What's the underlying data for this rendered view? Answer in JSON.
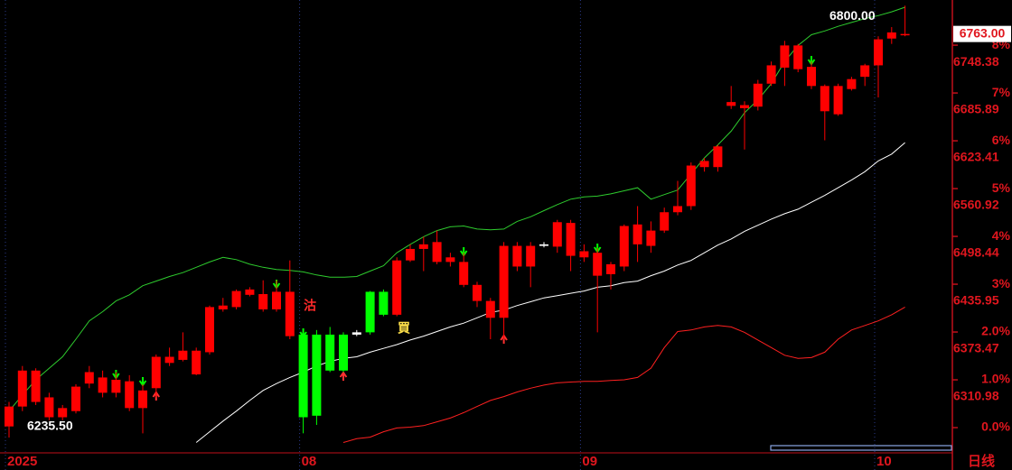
{
  "chart_data": {
    "type": "candlestick",
    "period": "日线",
    "categories": [
      "2025",
      null,
      null,
      null,
      null,
      null,
      null,
      null,
      null,
      null,
      null,
      null,
      null,
      null,
      null,
      null,
      null,
      null,
      null,
      null,
      null,
      null,
      "08",
      null,
      null,
      null,
      null,
      null,
      null,
      null,
      null,
      null,
      null,
      null,
      null,
      null,
      null,
      null,
      null,
      null,
      null,
      null,
      null,
      "09",
      null,
      null,
      null,
      null,
      null,
      null,
      null,
      null,
      null,
      null,
      null,
      null,
      null,
      null,
      null,
      null,
      null,
      null,
      null,
      null,
      null,
      "10",
      null,
      null
    ],
    "open": [
      6250,
      6276,
      6282,
      6262,
      6262,
      6270,
      6306,
      6294,
      6294,
      6274,
      6274,
      6300,
      6333,
      6337,
      6318,
      6347,
      6403,
      6406,
      6422,
      6403,
      6403,
      6426,
      6370,
      6370,
      6370,
      6370,
      6370,
      6373,
      6396,
      6396,
      6467,
      6482,
      6465,
      6465,
      6465,
      6435,
      6414,
      6392,
      6459,
      6459,
      6486,
      6485,
      6516,
      6471,
      6477,
      6449,
      6459,
      6514,
      6486,
      6506,
      6530,
      6538,
      6589,
      6589,
      6669,
      6670,
      6668,
      6698,
      6719,
      6748,
      6720,
      6695,
      6658,
      6691,
      6707,
      6722,
      6757,
      6763
    ],
    "high": [
      6282,
      6329,
      6326,
      6294,
      6278,
      6305,
      6329,
      6323,
      6321,
      6317,
      6305,
      6344,
      6353,
      6373,
      6353,
      6408,
      6418,
      6429,
      6432,
      6441,
      6441,
      6467,
      6376,
      6376,
      6380,
      6373,
      6376,
      6427,
      6429,
      6471,
      6488,
      6498,
      6506,
      6477,
      6477,
      6439,
      6418,
      6491,
      6491,
      6491,
      6491,
      6520,
      6520,
      6488,
      6483,
      6465,
      6514,
      6538,
      6518,
      6536,
      6571,
      6595,
      6601,
      6618,
      6695,
      6675,
      6703,
      6727,
      6754,
      6750,
      6727,
      6697,
      6698,
      6707,
      6724,
      6760,
      6772,
      6800
    ],
    "low": [
      6235.5,
      6270,
      6278,
      6258,
      6258,
      6267,
      6300,
      6288,
      6288,
      6270,
      6241,
      6288,
      6329,
      6335,
      6317,
      6344,
      6400,
      6403,
      6420,
      6400,
      6400,
      6364,
      6241,
      6252,
      6321,
      6321,
      6368,
      6370,
      6394,
      6394,
      6465,
      6453,
      6462,
      6459,
      6432,
      6406,
      6364,
      6364,
      6453,
      6432,
      6484,
      6477,
      6453,
      6465,
      6373,
      6429,
      6453,
      6465,
      6477,
      6503,
      6526,
      6533,
      6583,
      6583,
      6665,
      6612,
      6663,
      6695,
      6695,
      6713,
      6691,
      6624,
      6656,
      6689,
      6695,
      6680,
      6750,
      6760
    ],
    "close": [
      6276,
      6323,
      6323,
      6288,
      6274,
      6302,
      6321,
      6314,
      6311,
      6309,
      6297,
      6341,
      6341,
      6349,
      6349,
      6406,
      6408,
      6427,
      6429,
      6423,
      6426,
      6368,
      6262,
      6264,
      6323,
      6323,
      6373,
      6426,
      6426,
      6467,
      6482,
      6488,
      6491,
      6471,
      6435,
      6414,
      6392,
      6486,
      6486,
      6486,
      6488,
      6517,
      6473,
      6479,
      6447,
      6462,
      6512,
      6488,
      6506,
      6530,
      6538,
      6591,
      6597,
      6616,
      6674,
      6666,
      6698,
      6722,
      6748,
      6717,
      6695,
      6662,
      6695,
      6704,
      6722,
      6756,
      6765,
      6763
    ],
    "candle_colors": [
      "#ff0000",
      "#ff0000",
      "#ff0000",
      "#ff0000",
      "#ff0000",
      "#ff0000",
      "#ff0000",
      "#ff0000",
      "#ff0000",
      "#ff0000",
      "#ff0000",
      "#ff0000",
      "#ff0000",
      "#ff0000",
      "#ff0000",
      "#ff0000",
      "#ff0000",
      "#ff0000",
      "#ff0000",
      "#ff0000",
      "#ff0000",
      "#ff0000",
      "#00ff00",
      "#00ff00",
      "#00ff00",
      "#00ff00",
      "#ffffff",
      "#00ff00",
      "#00ff00",
      "#ff0000",
      "#ff0000",
      "#ff0000",
      "#ff0000",
      "#ff0000",
      "#ff0000",
      "#ff0000",
      "#ff0000",
      "#ff0000",
      "#ff0000",
      "#ff0000",
      "#ffffff",
      "#ff0000",
      "#ff0000",
      "#ff0000",
      "#ff0000",
      "#ff0000",
      "#ff0000",
      "#ff0000",
      "#ff0000",
      "#ff0000",
      "#ff0000",
      "#ff0000",
      "#ff0000",
      "#ff0000",
      "#ff0000",
      "#ff0000",
      "#ff0000",
      "#ff0000",
      "#ff0000",
      "#ff0000",
      "#ff0000",
      "#ff0000",
      "#ff0000",
      "#ff0000",
      "#ff0000",
      "#ff0000",
      "#ff0000",
      "#ff0000"
    ],
    "lines": [
      {
        "color": "#2ecc2e",
        "values": [
          6270,
          6291,
          6311,
          6326,
          6341,
          6364,
          6388,
          6400,
          6414,
          6422,
          6434,
          6440,
          6446,
          6451,
          6458,
          6465,
          6471,
          6468,
          6462,
          6458,
          6455,
          6454,
          6452,
          6448,
          6445,
          6445,
          6446,
          6453,
          6460,
          6477,
          6488,
          6498,
          6506,
          6511,
          6512,
          6508,
          6507,
          6508,
          6518,
          6524,
          6532,
          6540,
          6547,
          6550,
          6551,
          6554,
          6558,
          6562,
          6547,
          6553,
          6559,
          6580,
          6601,
          6618,
          6636,
          6660,
          6677,
          6698,
          6727,
          6748,
          6762,
          6767,
          6773,
          6778,
          6783,
          6787,
          6792,
          6798
        ]
      },
      {
        "color": "#ffffff",
        "values": [
          null,
          null,
          null,
          null,
          null,
          null,
          null,
          null,
          null,
          null,
          null,
          null,
          null,
          null,
          6229,
          6243,
          6257,
          6270,
          6284,
          6297,
          6306,
          6314,
          6321,
          6329,
          6335,
          6339,
          6341,
          6347,
          6352,
          6357,
          6363,
          6368,
          6374,
          6380,
          6385,
          6392,
          6399,
          6402,
          6408,
          6413,
          6418,
          6421,
          6424,
          6427,
          6432,
          6434,
          6438,
          6440,
          6447,
          6453,
          6461,
          6467,
          6477,
          6487,
          6495,
          6505,
          6513,
          6521,
          6528,
          6534,
          6543,
          6552,
          6562,
          6572,
          6583,
          6597,
          6606,
          6621
        ]
      },
      {
        "color": "#ff2020",
        "values": [
          null,
          null,
          null,
          null,
          null,
          null,
          null,
          null,
          null,
          null,
          null,
          null,
          null,
          null,
          null,
          null,
          null,
          null,
          null,
          null,
          null,
          null,
          null,
          null,
          null,
          6229,
          6234,
          6236,
          6243,
          6248,
          6249,
          6251,
          6256,
          6261,
          6268,
          6276,
          6284,
          6289,
          6295,
          6300,
          6304,
          6307,
          6308,
          6309,
          6309,
          6310,
          6311,
          6314,
          6326,
          6353,
          6374,
          6376,
          6380,
          6382,
          6380,
          6373,
          6363,
          6353,
          6343,
          6339,
          6340,
          6347,
          6364,
          6376,
          6382,
          6388,
          6396,
          6406
        ]
      }
    ],
    "ylim": [
      6217.8,
      6807.4
    ],
    "yticks": [
      6310.98,
      6373.47,
      6435.95,
      6498.44,
      6560.92,
      6623.41,
      6685.89,
      6748.38
    ],
    "y2lim": [
      -0.49,
      8.945
    ],
    "y2ticks": [
      {
        "value": 0,
        "label": "0.0%"
      },
      {
        "value": 1,
        "label": "1.0%"
      },
      {
        "value": 2,
        "label": "2.0%"
      },
      {
        "value": 3,
        "label": "3%"
      },
      {
        "value": 4,
        "label": "4%"
      },
      {
        "value": 5,
        "label": "5%"
      },
      {
        "value": 6,
        "label": "6%"
      },
      {
        "value": 7,
        "label": "7%"
      },
      {
        "value": 8,
        "label": "8%"
      }
    ],
    "annotations": [
      {
        "label": "6800.00",
        "value": 6800
      },
      {
        "label": "6235.50",
        "value": 6235.5
      },
      {
        "label": "6763.00",
        "value": 6763
      }
    ],
    "signals": [
      {
        "label": "沽",
        "color": "#ff2a2a"
      },
      {
        "label": "買",
        "color": "#ffe14a"
      }
    ]
  }
}
